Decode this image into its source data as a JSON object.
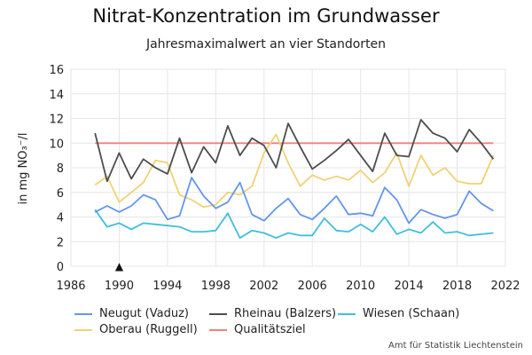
{
  "chart_data": {
    "type": "line",
    "title": "Nitrat-Konzentration im Grundwasser",
    "subtitle": "Jahresmaximalwert an vier Standorten",
    "ylabel": "in mg NO₃⁻/l",
    "xlabel": "",
    "xlim": [
      1986,
      2022
    ],
    "ylim": [
      0,
      16
    ],
    "xticks": [
      "1986",
      "1990",
      "1994",
      "1998",
      "2002",
      "2006",
      "2010",
      "2014",
      "2018",
      "2022"
    ],
    "yticks": [
      "0",
      "2",
      "4",
      "6",
      "8",
      "10",
      "12",
      "14",
      "16"
    ],
    "grid": true,
    "legend_position": "bottom",
    "marker": {
      "symbol": "▲",
      "x": 1990
    },
    "x": [
      1988,
      1989,
      1990,
      1991,
      1992,
      1993,
      1994,
      1995,
      1996,
      1997,
      1998,
      1999,
      2000,
      2001,
      2002,
      2003,
      2004,
      2005,
      2006,
      2007,
      2008,
      2009,
      2010,
      2011,
      2012,
      2013,
      2014,
      2015,
      2016,
      2017,
      2018,
      2019,
      2020,
      2021
    ],
    "series": [
      {
        "name": "Neugut (Vaduz)",
        "color": "#6495ed",
        "values": [
          4.4,
          4.9,
          4.4,
          4.9,
          5.8,
          5.4,
          3.8,
          4.1,
          7.2,
          5.7,
          4.7,
          5.2,
          6.8,
          4.2,
          3.7,
          4.7,
          5.5,
          4.2,
          3.8,
          4.7,
          5.7,
          4.2,
          4.3,
          4.1,
          6.4,
          5.4,
          3.5,
          4.6,
          4.2,
          3.9,
          4.2,
          6.1,
          5.1,
          4.5
        ]
      },
      {
        "name": "Oberau (Ruggell)",
        "color": "#f0d275",
        "values": [
          6.6,
          7.3,
          5.2,
          6.0,
          6.8,
          8.6,
          8.4,
          5.8,
          5.4,
          4.8,
          5.0,
          6.0,
          5.8,
          6.5,
          9.2,
          10.7,
          8.4,
          6.5,
          7.4,
          7.0,
          7.3,
          7.0,
          7.8,
          6.8,
          7.6,
          9.2,
          6.5,
          9.0,
          7.4,
          8.0,
          6.9,
          6.7,
          6.7,
          9.0
        ]
      },
      {
        "name": "Rheinau (Balzers)",
        "color": "#4d4d4d",
        "values": [
          10.8,
          6.9,
          9.2,
          7.1,
          8.7,
          8.0,
          7.5,
          10.4,
          7.6,
          9.7,
          8.4,
          11.4,
          9.0,
          10.4,
          9.8,
          8.0,
          11.6,
          9.7,
          7.9,
          8.6,
          9.4,
          10.3,
          9.0,
          7.7,
          10.8,
          9.0,
          8.9,
          11.9,
          10.8,
          10.4,
          9.3,
          11.1,
          10.0,
          8.7
        ]
      },
      {
        "name": "Qualitätsziel",
        "color": "#f08080",
        "values": [
          10,
          10,
          10,
          10,
          10,
          10,
          10,
          10,
          10,
          10,
          10,
          10,
          10,
          10,
          10,
          10,
          10,
          10,
          10,
          10,
          10,
          10,
          10,
          10,
          10,
          10,
          10,
          10,
          10,
          10,
          10,
          10,
          10,
          10
        ]
      },
      {
        "name": "Wiesen (Schaan)",
        "color": "#40bfdf",
        "values": [
          4.6,
          3.2,
          3.5,
          3.0,
          3.5,
          3.4,
          3.3,
          3.2,
          2.8,
          2.8,
          2.9,
          4.3,
          2.3,
          2.9,
          2.7,
          2.3,
          2.7,
          2.5,
          2.5,
          3.9,
          2.9,
          2.8,
          3.4,
          2.8,
          4.0,
          2.6,
          3.0,
          2.7,
          3.6,
          2.7,
          2.8,
          2.5,
          2.6,
          2.7
        ]
      }
    ]
  },
  "source": "Amt für Statistik Liechtenstein"
}
